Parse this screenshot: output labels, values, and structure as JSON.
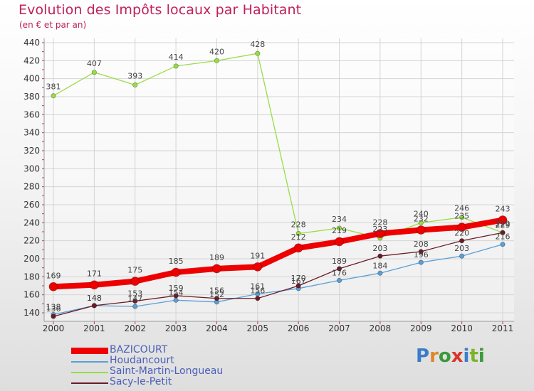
{
  "title": "Evolution des Impôts locaux par Habitant",
  "subtitle": "(en € et par an)",
  "brand": {
    "text": "Proxiti",
    "colors": [
      "#3a7dc9",
      "#e0872a",
      "#3a9a3a",
      "#d9362a",
      "#3a7dc9",
      "#7ab52a",
      "#3a9a3a"
    ]
  },
  "chart_data": {
    "type": "line",
    "title": "Evolution des Impôts locaux par Habitant",
    "subtitle": "(en € et par an)",
    "xlabel": "",
    "ylabel": "",
    "x": [
      "2000",
      "2001",
      "2002",
      "2003",
      "2004",
      "2005",
      "2006",
      "2007",
      "2008",
      "2009",
      "2010",
      "2011"
    ],
    "ylim": [
      140,
      440
    ],
    "yticks": [
      140,
      160,
      180,
      200,
      220,
      240,
      260,
      280,
      300,
      320,
      340,
      360,
      380,
      400,
      420,
      440
    ],
    "legend_position": "bottom-left",
    "series": [
      {
        "name": "Saint-Martin-Longueau",
        "color": "#99dd44",
        "labels_shown": true,
        "values": [
          381,
          407,
          393,
          414,
          420,
          428,
          228,
          234,
          223,
          240,
          246,
          229
        ]
      },
      {
        "name": "Houdancourt",
        "color": "#5a9fd6",
        "labels_shown": true,
        "values": [
          138,
          148,
          147,
          154,
          152,
          161,
          167,
          176,
          184,
          196,
          203,
          216
        ]
      },
      {
        "name": "Sacy-le-Petit",
        "color": "#6b1c28",
        "labels_shown": true,
        "values": [
          136,
          148,
          153,
          159,
          156,
          156,
          170,
          189,
          203,
          208,
          220,
          229
        ]
      },
      {
        "name": "BAZICOURT",
        "color": "#ee0000",
        "labels_shown": true,
        "values": [
          169,
          171,
          175,
          185,
          189,
          191,
          212,
          219,
          228,
          232,
          235,
          243
        ]
      }
    ],
    "legend_order": [
      "BAZICOURT",
      "Houdancourt",
      "Saint-Martin-Longueau",
      "Sacy-le-Petit"
    ]
  }
}
